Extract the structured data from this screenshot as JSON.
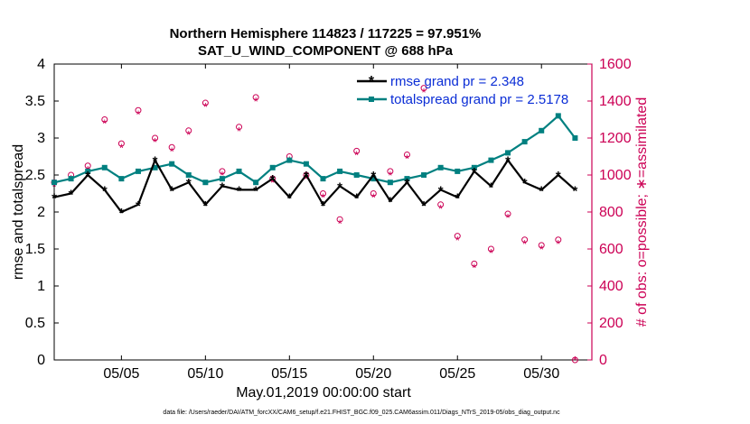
{
  "chart_data": {
    "type": "line",
    "title": [
      "Northern Hemisphere 114823 / 117225 = 97.951%",
      "SAT_U_WIND_COMPONENT @ 688 hPa"
    ],
    "xlabel": "May.01,2019 00:00:00 start",
    "ylabel_left": "rmse and totalspread",
    "ylabel_right": "# of obs: o=possible; ∗=assimilated",
    "xlim": [
      1,
      33
    ],
    "ylim_left": [
      0,
      4
    ],
    "ylim_right": [
      0,
      1600
    ],
    "x_ticks": [
      5,
      10,
      15,
      20,
      25,
      30
    ],
    "x_tick_labels": [
      "05/05",
      "05/10",
      "05/15",
      "05/20",
      "05/25",
      "05/30"
    ],
    "y_ticks_left": [
      0,
      0.5,
      1,
      1.5,
      2,
      2.5,
      3,
      3.5,
      4
    ],
    "y_tick_labels_left": [
      "0",
      "0.5",
      "1",
      "1.5",
      "2",
      "2.5",
      "3",
      "3.5",
      "4"
    ],
    "y_ticks_right": [
      0,
      200,
      400,
      600,
      800,
      1000,
      1200,
      1400,
      1600
    ],
    "y_tick_labels_right": [
      "0",
      "200",
      "400",
      "600",
      "800",
      "1000",
      "1200",
      "1400",
      "1600"
    ],
    "legend_position": "top-right",
    "series": [
      {
        "name": "rmse grand pr = 2.348",
        "color": "#000000",
        "marker": "star",
        "x": [
          1.0,
          2.0,
          3.0,
          4.0,
          5.0,
          6.0,
          7.0,
          8.0,
          9.0,
          10.0,
          11.0,
          12.0,
          13.0,
          14.0,
          15.0,
          16.0,
          17.0,
          18.0,
          19.0,
          20.0,
          21.0,
          22.0,
          23.0,
          24.0,
          25.0,
          26.0,
          27.0,
          28.0,
          29.0,
          30.0,
          31.0,
          32.0
        ],
        "y": [
          2.2,
          2.25,
          2.5,
          2.3,
          2.0,
          2.1,
          2.7,
          2.3,
          2.4,
          2.1,
          2.35,
          2.3,
          2.3,
          2.45,
          2.2,
          2.5,
          2.1,
          2.35,
          2.2,
          2.5,
          2.15,
          2.4,
          2.1,
          2.3,
          2.2,
          2.55,
          2.35,
          2.7,
          2.4,
          2.3,
          2.5,
          2.3
        ]
      },
      {
        "name": "totalspread grand pr = 2.5178",
        "color": "#008080",
        "marker": "square",
        "x": [
          1.0,
          2.0,
          3.0,
          4.0,
          5.0,
          6.0,
          7.0,
          8.0,
          9.0,
          10.0,
          11.0,
          12.0,
          13.0,
          14.0,
          15.0,
          16.0,
          17.0,
          18.0,
          19.0,
          20.0,
          21.0,
          22.0,
          23.0,
          24.0,
          25.0,
          26.0,
          27.0,
          28.0,
          29.0,
          30.0,
          31.0,
          32.0
        ],
        "y": [
          2.4,
          2.45,
          2.55,
          2.6,
          2.45,
          2.55,
          2.6,
          2.65,
          2.5,
          2.4,
          2.45,
          2.55,
          2.4,
          2.6,
          2.7,
          2.65,
          2.45,
          2.55,
          2.5,
          2.45,
          2.4,
          2.45,
          2.5,
          2.6,
          2.55,
          2.6,
          2.7,
          2.8,
          2.95,
          3.1,
          3.3,
          3.0
        ]
      }
    ],
    "obs_possible": {
      "name": "possible (o)",
      "color": "#cc0055",
      "x": [
        1.0,
        2.0,
        3.0,
        4.0,
        5.0,
        6.0,
        7.0,
        8.0,
        9.0,
        10.0,
        11.0,
        12.0,
        13.0,
        14.0,
        15.0,
        16.0,
        17.0,
        18.0,
        19.0,
        20.0,
        21.0,
        22.0,
        23.0,
        24.0,
        25.0,
        26.0,
        27.0,
        28.0,
        29.0,
        30.0,
        31.0,
        32.0
      ],
      "y": [
        960,
        1000,
        1050,
        1300,
        1170,
        1350,
        1200,
        1150,
        1240,
        1390,
        1020,
        1260,
        1420,
        980,
        1100,
        1000,
        900,
        760,
        1130,
        900,
        1020,
        1110,
        1470,
        840,
        670,
        520,
        600,
        790,
        650,
        620,
        650,
        0
      ]
    },
    "obs_assimilated": {
      "name": "assimilated (∗)",
      "color": "#cc0055",
      "x": [
        1.0,
        2.0,
        3.0,
        4.0,
        5.0,
        6.0,
        7.0,
        8.0,
        9.0,
        10.0,
        11.0,
        12.0,
        13.0,
        14.0,
        15.0,
        16.0,
        17.0,
        18.0,
        19.0,
        20.0,
        21.0,
        22.0,
        23.0,
        24.0,
        25.0,
        26.0,
        27.0,
        28.0,
        29.0,
        30.0,
        31.0,
        32.0
      ],
      "y": [
        940,
        980,
        1030,
        1280,
        1150,
        1330,
        1180,
        1130,
        1220,
        1370,
        1000,
        1240,
        1400,
        960,
        1080,
        980,
        880,
        740,
        1110,
        880,
        1000,
        1090,
        1450,
        820,
        650,
        500,
        580,
        770,
        630,
        600,
        630,
        0
      ]
    }
  },
  "footer": "data file: /Users/raeder/DAI/ATM_forcXX/CAM6_setup/f.e21.FHIST_BGC.f09_025.CAM6assim.011/Diags_NTrS_2019-05/obs_diag_output.nc"
}
